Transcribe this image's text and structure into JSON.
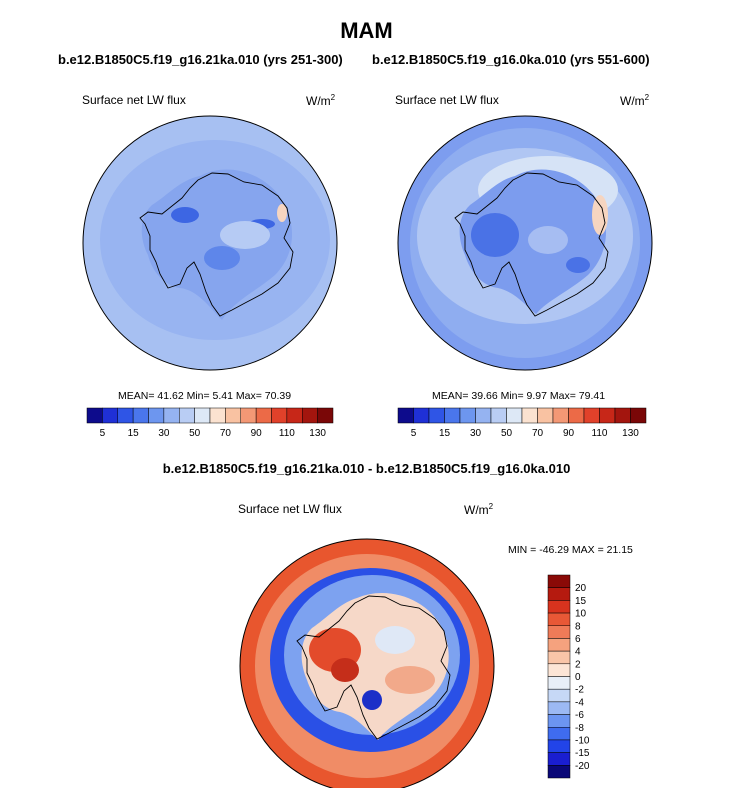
{
  "title": "MAM",
  "panels": {
    "left": {
      "case": "b.e12.B1850C5.f19_g16.21ka.010 (yrs 251-300)",
      "variable": "Surface net LW flux",
      "unit_base": "W/m",
      "unit_exp": "2",
      "stats": "MEAN= 41.62  Min=  5.41  Max= 70.39"
    },
    "right": {
      "case": "b.e12.B1850C5.f19_g16.0ka.010 (yrs 551-600)",
      "variable": "Surface net LW flux",
      "unit_base": "W/m",
      "unit_exp": "2",
      "stats": "MEAN= 39.66  Min=  9.97  Max= 79.41"
    },
    "diff": {
      "case": "b.e12.B1850C5.f19_g16.21ka.010 - b.e12.B1850C5.f19_g16.0ka.010",
      "variable": "Surface net LW flux",
      "unit_base": "W/m",
      "unit_exp": "2",
      "stats": "MIN = -46.29 MAX =  21.15"
    }
  },
  "chart_data": [
    {
      "type": "heatmap",
      "projection": "south-polar-stereographic",
      "title": "Surface net LW flux",
      "units": "W/m2",
      "case": "b.e12.B1850C5.f19_g16.21ka.010 (yrs 251-300)",
      "mean": 41.62,
      "min": 5.41,
      "max": 70.39,
      "levels": [
        5,
        10,
        15,
        20,
        30,
        40,
        50,
        60,
        70,
        80,
        90,
        100,
        110,
        120,
        130
      ],
      "tick_labels": [
        "5",
        "15",
        "30",
        "50",
        "70",
        "90",
        "110",
        "130"
      ],
      "colors": [
        "#0d0b8c",
        "#1f30d6",
        "#2f55e6",
        "#4a76ec",
        "#6d96ef",
        "#95b3f1",
        "#b9cdf4",
        "#dde8f6",
        "#fbe2d0",
        "#f9c2a2",
        "#f39875",
        "#ec6a47",
        "#e1412a",
        "#c72718",
        "#a3150e",
        "#7a0707"
      ]
    },
    {
      "type": "heatmap",
      "projection": "south-polar-stereographic",
      "title": "Surface net LW flux",
      "units": "W/m2",
      "case": "b.e12.B1850C5.f19_g16.0ka.010 (yrs 551-600)",
      "mean": 39.66,
      "min": 9.97,
      "max": 79.41,
      "levels": [
        5,
        10,
        15,
        20,
        30,
        40,
        50,
        60,
        70,
        80,
        90,
        100,
        110,
        120,
        130
      ],
      "tick_labels": [
        "5",
        "15",
        "30",
        "50",
        "70",
        "90",
        "110",
        "130"
      ],
      "colors": [
        "#0d0b8c",
        "#1f30d6",
        "#2f55e6",
        "#4a76ec",
        "#6d96ef",
        "#95b3f1",
        "#b9cdf4",
        "#dde8f6",
        "#fbe2d0",
        "#f9c2a2",
        "#f39875",
        "#ec6a47",
        "#e1412a",
        "#c72718",
        "#a3150e",
        "#7a0707"
      ]
    },
    {
      "type": "heatmap",
      "projection": "south-polar-stereographic",
      "title": "Surface net LW flux",
      "units": "W/m2",
      "case": "b.e12.B1850C5.f19_g16.21ka.010 - b.e12.B1850C5.f19_g16.0ka.010",
      "min": -46.29,
      "max": 21.15,
      "levels": [
        -20,
        -15,
        -10,
        -8,
        -6,
        -4,
        -2,
        0,
        2,
        4,
        6,
        8,
        10,
        15,
        20
      ],
      "tick_labels": [
        "20",
        "15",
        "10",
        "8",
        "6",
        "4",
        "2",
        "0",
        "-2",
        "-4",
        "-6",
        "-8",
        "-10",
        "-15",
        "-20"
      ],
      "colors": [
        "#0a0878",
        "#1a1ed0",
        "#2244e8",
        "#3f6cef",
        "#6c95f1",
        "#9cb9f3",
        "#c6d8f6",
        "#e8eff8",
        "#fce5d6",
        "#f9c5a8",
        "#f5a27e",
        "#ef7b58",
        "#e85836",
        "#d8331e",
        "#b51a0f",
        "#8a0a07"
      ]
    }
  ]
}
